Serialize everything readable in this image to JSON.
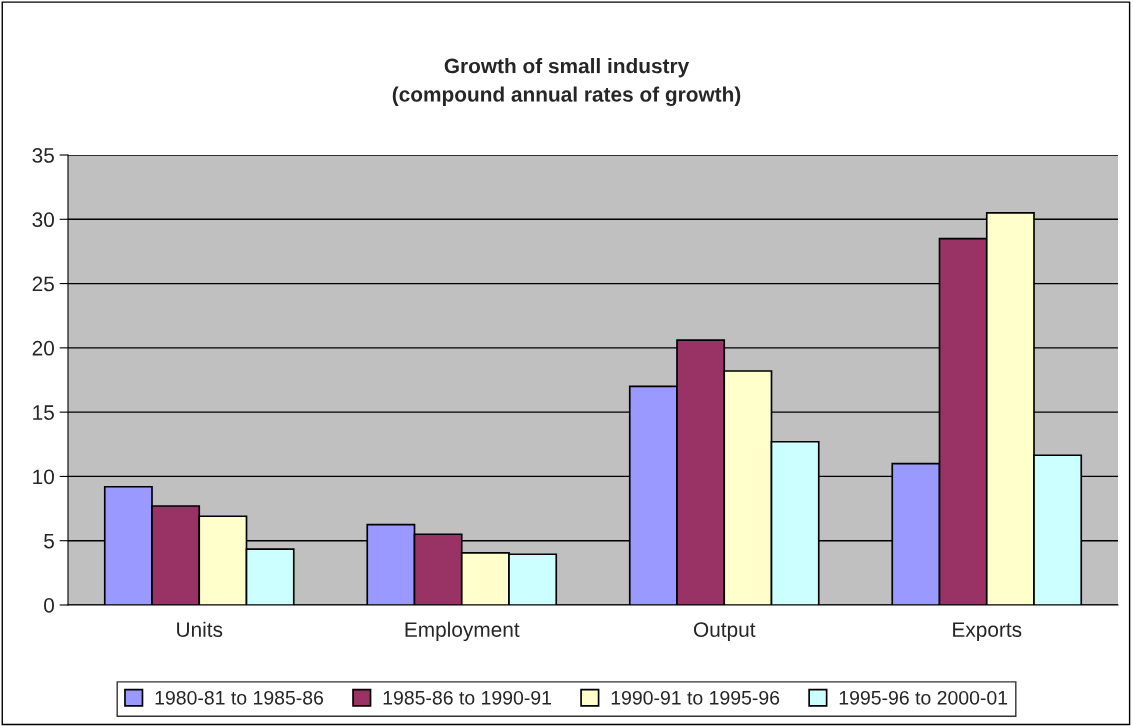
{
  "chart_data": {
    "type": "bar",
    "title": "Growth of small industry\n(compound annual rates of growth)",
    "categories": [
      "Units",
      "Employment",
      "Output",
      "Exports"
    ],
    "series": [
      {
        "name": "1980-81 to 1985-86",
        "color": "#9999ff",
        "values": [
          9.2,
          6.25,
          17.0,
          11.0
        ]
      },
      {
        "name": "1985-86 to 1990-91",
        "color": "#993366",
        "values": [
          7.7,
          5.5,
          20.6,
          28.5
        ]
      },
      {
        "name": "1990-91 to 1995-96",
        "color": "#ffffcc",
        "values": [
          6.9,
          4.05,
          18.2,
          30.5
        ]
      },
      {
        "name": "1995-96 to 2000-01",
        "color": "#ccffff",
        "values": [
          4.35,
          3.95,
          12.7,
          11.65
        ]
      }
    ],
    "ylim": [
      0,
      35
    ],
    "yticks": [
      0,
      5,
      10,
      15,
      20,
      25,
      30,
      35
    ],
    "grid": "y",
    "legend": "bottom"
  }
}
